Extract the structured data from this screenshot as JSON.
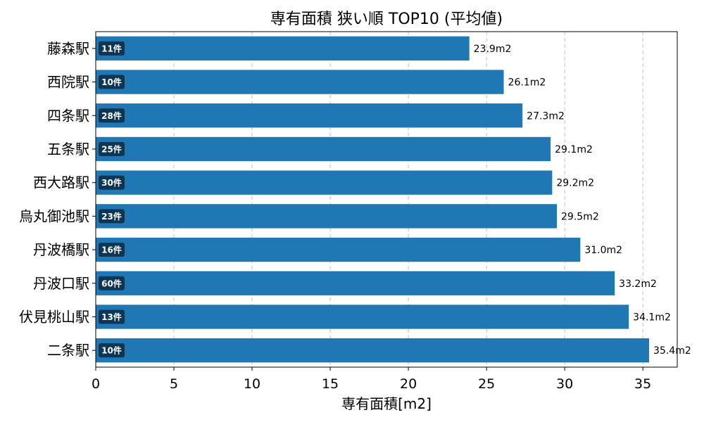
{
  "chart_data": {
    "type": "bar",
    "orientation": "horizontal",
    "title": "専有面積 狭い順 TOP10 (平均値)",
    "xlabel": "専有面積[m2]",
    "ylabel": "",
    "xlim": [
      0,
      37.2
    ],
    "xticks": [
      0,
      5,
      10,
      15,
      20,
      25,
      30,
      35
    ],
    "grid": "x-dashed",
    "bar_color": "#1f77b4",
    "badge_color": "#0f3556",
    "value_suffix": "m2",
    "bars": [
      {
        "category": "藤森駅",
        "value": 23.9,
        "value_label": "23.9m2",
        "count_label": "11件"
      },
      {
        "category": "西院駅",
        "value": 26.1,
        "value_label": "26.1m2",
        "count_label": "10件"
      },
      {
        "category": "四条駅",
        "value": 27.3,
        "value_label": "27.3m2",
        "count_label": "28件"
      },
      {
        "category": "五条駅",
        "value": 29.1,
        "value_label": "29.1m2",
        "count_label": "25件"
      },
      {
        "category": "西大路駅",
        "value": 29.2,
        "value_label": "29.2m2",
        "count_label": "30件"
      },
      {
        "category": "烏丸御池駅",
        "value": 29.5,
        "value_label": "29.5m2",
        "count_label": "23件"
      },
      {
        "category": "丹波橋駅",
        "value": 31.0,
        "value_label": "31.0m2",
        "count_label": "16件"
      },
      {
        "category": "丹波口駅",
        "value": 33.2,
        "value_label": "33.2m2",
        "count_label": "60件"
      },
      {
        "category": "伏見桃山駅",
        "value": 34.1,
        "value_label": "34.1m2",
        "count_label": "13件"
      },
      {
        "category": "二条駅",
        "value": 35.4,
        "value_label": "35.4m2",
        "count_label": "10件"
      }
    ]
  }
}
